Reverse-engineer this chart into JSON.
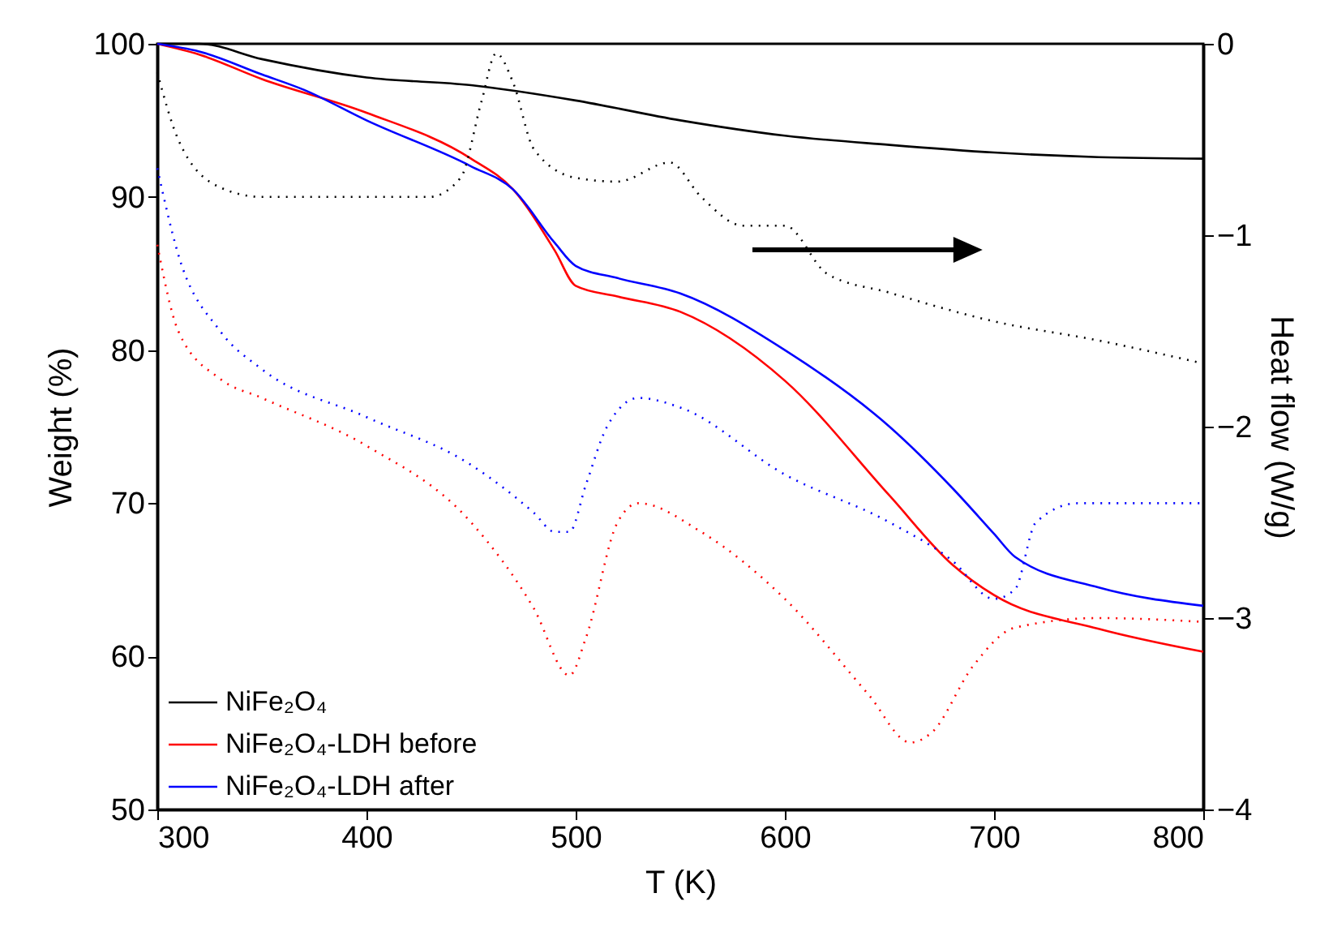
{
  "chart_data": {
    "type": "line",
    "xlabel": "T (K)",
    "ylabel": "Weight (%)",
    "y2label": "Heat flow (W/g)",
    "xlim": [
      300,
      800
    ],
    "xticks": [
      300,
      400,
      500,
      600,
      700,
      800
    ],
    "ylim": [
      50,
      100
    ],
    "yticks": [
      50,
      60,
      70,
      80,
      90,
      100
    ],
    "y2lim": [
      -4,
      0
    ],
    "y2ticks": [
      -4,
      -3,
      -2,
      -1,
      0
    ],
    "grid": false,
    "legend": "bottom left",
    "marker": "none",
    "series": [
      {
        "name": "NiFe₂O₄",
        "color": "#000000",
        "line_style": "solid",
        "x": [
          300,
          320,
          350,
          400,
          450,
          500,
          550,
          600,
          650,
          700,
          750,
          800
        ],
        "values": [
          100,
          100,
          99,
          97.8,
          97.3,
          96.3,
          95,
          94,
          93.4,
          92.9,
          92.6,
          92.5
        ]
      },
      {
        "name": "NiFe₂O₄-LDH before",
        "color": "#ff0000",
        "line_style": "solid",
        "x": [
          300,
          320,
          350,
          400,
          450,
          470,
          490,
          500,
          520,
          550,
          600,
          650,
          680,
          700,
          750,
          800
        ],
        "values": [
          100,
          99.3,
          97.7,
          95.5,
          92.5,
          90.5,
          86.5,
          84.2,
          83.5,
          82.5,
          78,
          70.5,
          66,
          64,
          61.8,
          60.3
        ]
      },
      {
        "name": "NiFe₂O₄-LDH after",
        "color": "#0000ff",
        "line_style": "solid",
        "x": [
          300,
          320,
          350,
          370,
          400,
          450,
          470,
          490,
          500,
          520,
          550,
          600,
          650,
          680,
          700,
          710,
          750,
          800
        ],
        "values": [
          100,
          99.5,
          98,
          97,
          95,
          92,
          90.5,
          87,
          85.5,
          84.7,
          83.7,
          80,
          75,
          71,
          68,
          66.5,
          64.5,
          63.3
        ]
      },
      {
        "color": "#000000",
        "line_style": "dotted",
        "axis": "y2",
        "x": [
          300,
          310,
          330,
          350,
          400,
          430,
          445,
          455,
          462,
          470,
          480,
          500,
          520,
          545,
          560,
          580,
          600,
          620,
          650,
          700,
          750,
          800
        ],
        "values": [
          -0.15,
          -0.5,
          -0.75,
          -0.8,
          -0.8,
          -0.8,
          -0.7,
          -0.3,
          -0.05,
          -0.2,
          -0.55,
          -0.7,
          -0.72,
          -0.62,
          -0.8,
          -0.95,
          -0.95,
          -1.2,
          -1.3,
          -1.45,
          -1.55,
          -1.67
        ]
      },
      {
        "color": "#0000ff",
        "line_style": "dotted",
        "axis": "y2",
        "x": [
          300,
          310,
          330,
          350,
          400,
          450,
          480,
          490,
          497,
          505,
          515,
          530,
          550,
          600,
          650,
          680,
          700,
          710,
          720,
          740,
          800
        ],
        "values": [
          -0.65,
          -1.1,
          -1.5,
          -1.7,
          -1.95,
          -2.2,
          -2.45,
          -2.55,
          -2.55,
          -2.3,
          -2.0,
          -1.85,
          -1.9,
          -2.25,
          -2.5,
          -2.7,
          -2.9,
          -2.85,
          -2.5,
          -2.4,
          -2.4
        ]
      },
      {
        "color": "#ff0000",
        "line_style": "dotted",
        "axis": "y2",
        "x": [
          300,
          310,
          330,
          350,
          400,
          450,
          480,
          497,
          505,
          520,
          530,
          560,
          600,
          640,
          660,
          670,
          690,
          710,
          750,
          800
        ],
        "values": [
          -1.05,
          -1.5,
          -1.75,
          -1.85,
          -2.1,
          -2.5,
          -2.95,
          -3.3,
          -3.1,
          -2.5,
          -2.4,
          -2.55,
          -2.9,
          -3.4,
          -3.65,
          -3.6,
          -3.25,
          -3.05,
          -3.0,
          -3.02
        ]
      }
    ]
  }
}
